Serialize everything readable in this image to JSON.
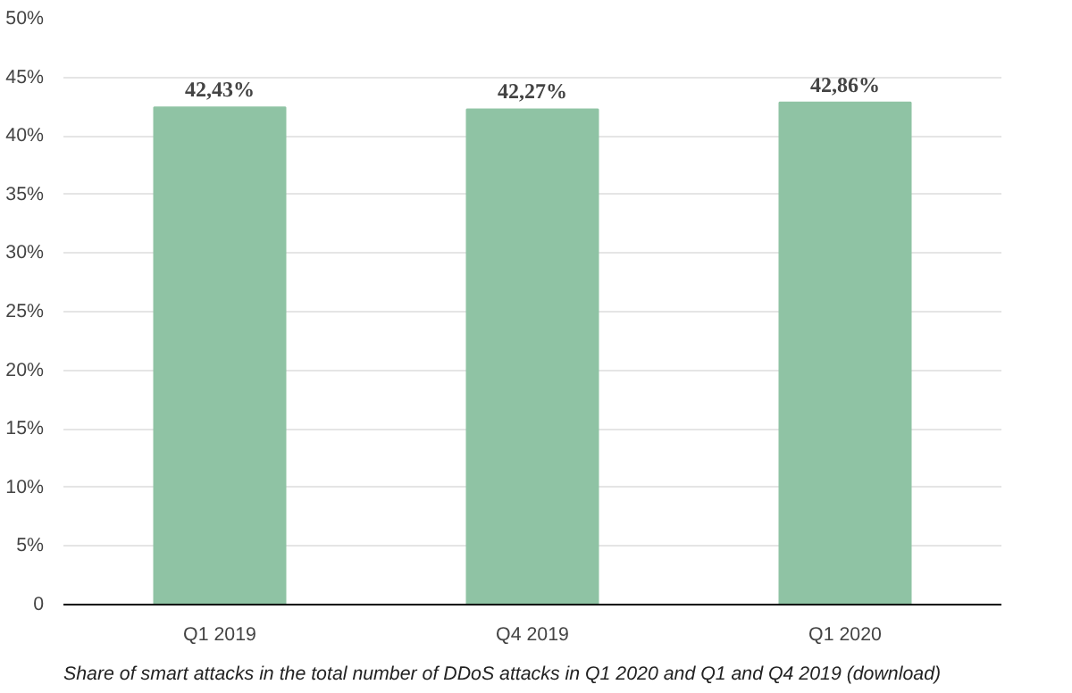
{
  "chart_data": {
    "type": "bar",
    "categories": [
      "Q1 2019",
      "Q4 2019",
      "Q1 2020"
    ],
    "values": [
      42.43,
      42.27,
      42.86
    ],
    "value_labels": [
      "42,43%",
      "42,27%",
      "42,86%"
    ],
    "color": "#8fc3a4",
    "ylim": [
      0,
      50
    ],
    "yticks": [
      {
        "value": 0,
        "label": "0"
      },
      {
        "value": 5,
        "label": "5%"
      },
      {
        "value": 10,
        "label": "10%"
      },
      {
        "value": 15,
        "label": "15%"
      },
      {
        "value": 20,
        "label": "20%"
      },
      {
        "value": 25,
        "label": "25%"
      },
      {
        "value": 30,
        "label": "30%"
      },
      {
        "value": 35,
        "label": "35%"
      },
      {
        "value": 40,
        "label": "40%"
      },
      {
        "value": 45,
        "label": "45%"
      },
      {
        "value": 50,
        "label": "50%"
      }
    ],
    "grid": "y",
    "annotations": [
      "Share of smart attacks in the total number of DDoS attacks in Q1 2020 and Q1 and Q4 2019 (download)"
    ]
  }
}
